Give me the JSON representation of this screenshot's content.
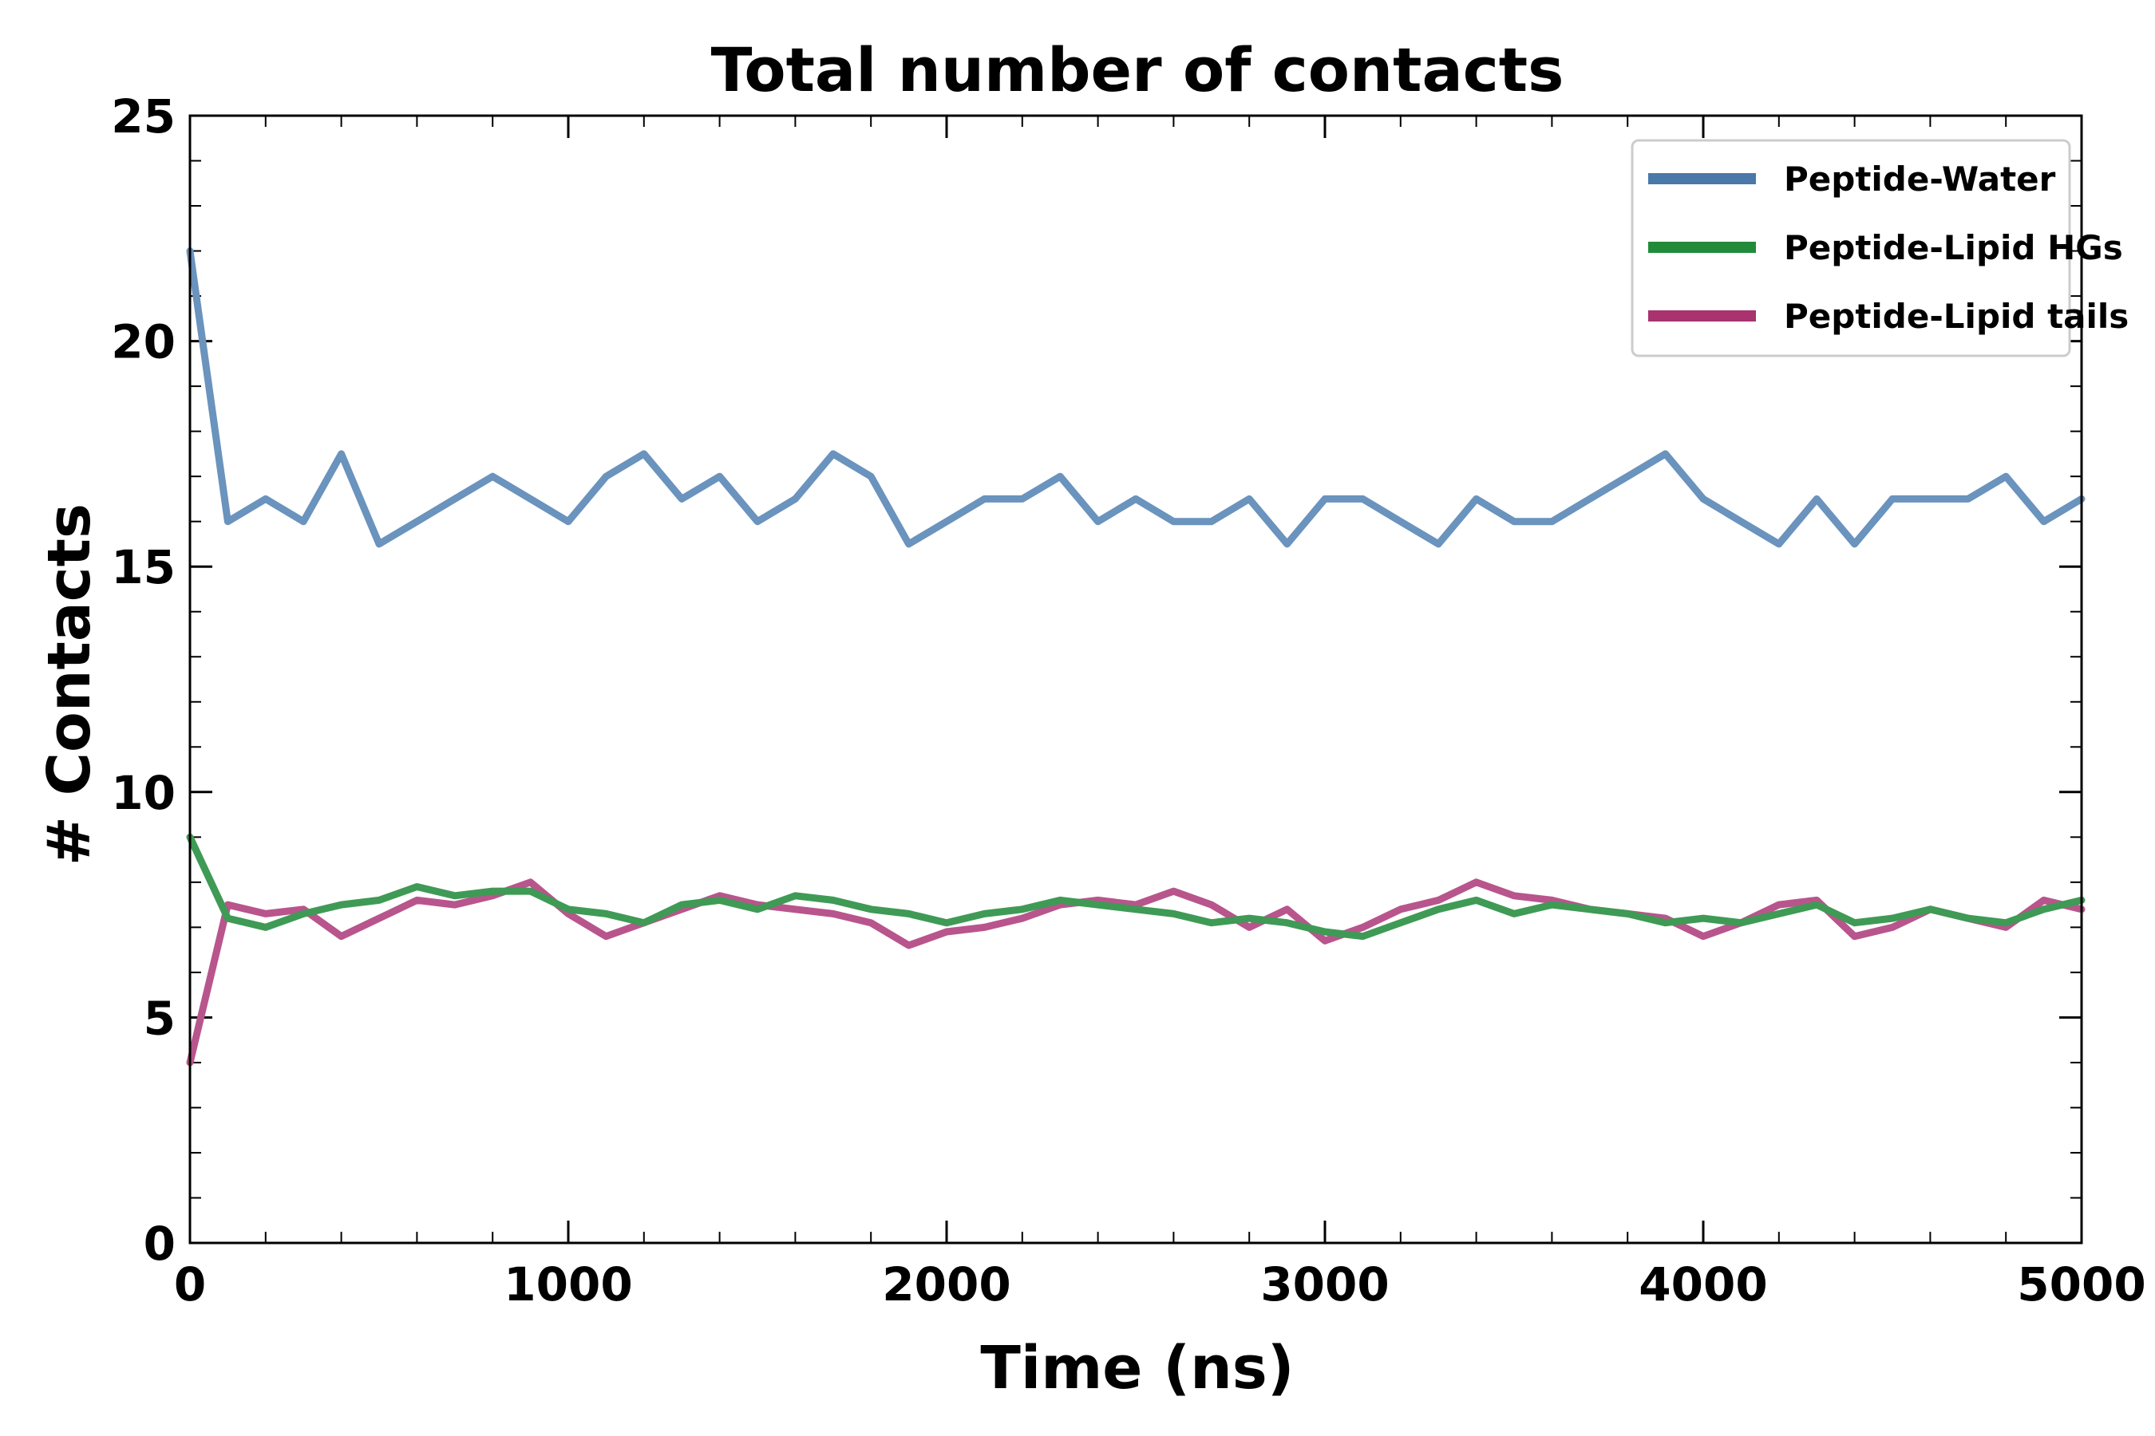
{
  "chart_data": {
    "type": "line",
    "title": "Total number of contacts",
    "xlabel": "Time (ns)",
    "ylabel": "# Contacts",
    "xlim": [
      0,
      5000
    ],
    "ylim": [
      0,
      25
    ],
    "xticks": [
      0,
      1000,
      2000,
      3000,
      4000,
      5000
    ],
    "yticks": [
      0,
      5,
      10,
      15,
      20,
      25
    ],
    "x_minor_step": 200,
    "y_minor_step": 1,
    "grid": false,
    "legend_position": "top-right",
    "x": [
      0,
      100,
      200,
      300,
      400,
      500,
      600,
      700,
      800,
      900,
      1000,
      1100,
      1200,
      1300,
      1400,
      1500,
      1600,
      1700,
      1800,
      1900,
      2000,
      2100,
      2200,
      2300,
      2400,
      2500,
      2600,
      2700,
      2800,
      2900,
      3000,
      3100,
      3200,
      3300,
      3400,
      3500,
      3600,
      3700,
      3800,
      3900,
      4000,
      4100,
      4200,
      4300,
      4400,
      4500,
      4600,
      4700,
      4800,
      4900,
      5000
    ],
    "series": [
      {
        "name": "Peptide-Water",
        "color": "#4a78a8",
        "line_color": "#6a93bd",
        "values": [
          22.0,
          16.0,
          16.5,
          16.0,
          17.5,
          15.5,
          16.0,
          16.5,
          17.0,
          16.5,
          16.0,
          17.0,
          17.5,
          16.5,
          17.0,
          16.0,
          16.5,
          17.5,
          17.0,
          15.5,
          16.0,
          16.5,
          16.5,
          17.0,
          16.0,
          16.5,
          16.0,
          16.0,
          16.5,
          15.5,
          16.5,
          16.5,
          16.0,
          15.5,
          16.5,
          16.0,
          16.0,
          16.5,
          17.0,
          17.5,
          16.5,
          16.0,
          15.5,
          16.5,
          15.5,
          16.5,
          16.5,
          16.5,
          17.0,
          16.0,
          16.5
        ]
      },
      {
        "name": "Peptide-Lipid HGs",
        "color": "#228b3a",
        "line_color": "#3f9a55",
        "values": [
          9.0,
          7.2,
          7.0,
          7.3,
          7.5,
          7.6,
          7.9,
          7.7,
          7.8,
          7.8,
          7.4,
          7.3,
          7.1,
          7.5,
          7.6,
          7.4,
          7.7,
          7.6,
          7.4,
          7.3,
          7.1,
          7.3,
          7.4,
          7.6,
          7.5,
          7.4,
          7.3,
          7.1,
          7.2,
          7.1,
          6.9,
          6.8,
          7.1,
          7.4,
          7.6,
          7.3,
          7.5,
          7.4,
          7.3,
          7.1,
          7.2,
          7.1,
          7.3,
          7.5,
          7.1,
          7.2,
          7.4,
          7.2,
          7.1,
          7.4,
          7.6
        ]
      },
      {
        "name": "Peptide-Lipid tails",
        "color": "#a8336e",
        "line_color": "#b8558c",
        "values": [
          4.0,
          7.5,
          7.3,
          7.4,
          6.8,
          7.2,
          7.6,
          7.5,
          7.7,
          8.0,
          7.3,
          6.8,
          7.1,
          7.4,
          7.7,
          7.5,
          7.4,
          7.3,
          7.1,
          6.6,
          6.9,
          7.0,
          7.2,
          7.5,
          7.6,
          7.5,
          7.8,
          7.5,
          7.0,
          7.4,
          6.7,
          7.0,
          7.4,
          7.6,
          8.0,
          7.7,
          7.6,
          7.4,
          7.3,
          7.2,
          6.8,
          7.1,
          7.5,
          7.6,
          6.8,
          7.0,
          7.4,
          7.2,
          7.0,
          7.6,
          7.4
        ]
      }
    ]
  }
}
